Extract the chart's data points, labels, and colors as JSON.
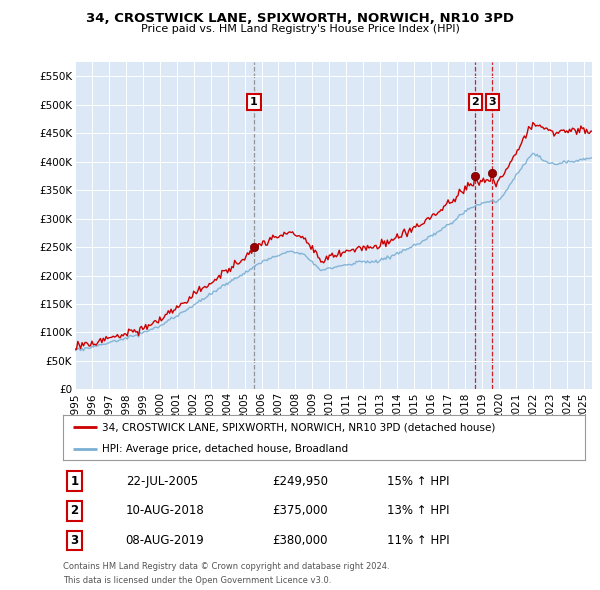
{
  "title1": "34, CROSTWICK LANE, SPIXWORTH, NORWICH, NR10 3PD",
  "title2": "Price paid vs. HM Land Registry's House Price Index (HPI)",
  "ylabel_ticks": [
    "£0",
    "£50K",
    "£100K",
    "£150K",
    "£200K",
    "£250K",
    "£300K",
    "£350K",
    "£400K",
    "£450K",
    "£500K",
    "£550K"
  ],
  "ylabel_values": [
    0,
    50000,
    100000,
    150000,
    200000,
    250000,
    300000,
    350000,
    400000,
    450000,
    500000,
    550000
  ],
  "ylim": [
    0,
    575000
  ],
  "xlim_start": 1995.0,
  "xlim_end": 2025.5,
  "legend_line1": "34, CROSTWICK LANE, SPIXWORTH, NORWICH, NR10 3PD (detached house)",
  "legend_line2": "HPI: Average price, detached house, Broadland",
  "transactions": [
    {
      "num": 1,
      "date": "22-JUL-2005",
      "price": 249950,
      "pct": "15%",
      "x": 2005.55,
      "vline_color": "#888888"
    },
    {
      "num": 2,
      "date": "10-AUG-2018",
      "price": 375000,
      "pct": "13%",
      "x": 2018.61,
      "vline_color": "#cc0000"
    },
    {
      "num": 3,
      "date": "08-AUG-2019",
      "price": 380000,
      "pct": "11%",
      "x": 2019.61,
      "vline_color": "#cc0000"
    }
  ],
  "footer1": "Contains HM Land Registry data © Crown copyright and database right 2024.",
  "footer2": "This data is licensed under the Open Government Licence v3.0.",
  "bg_color": "#dce8f5",
  "red_color": "#cc0000",
  "blue_color": "#7aafd4",
  "grid_color": "#ffffff"
}
